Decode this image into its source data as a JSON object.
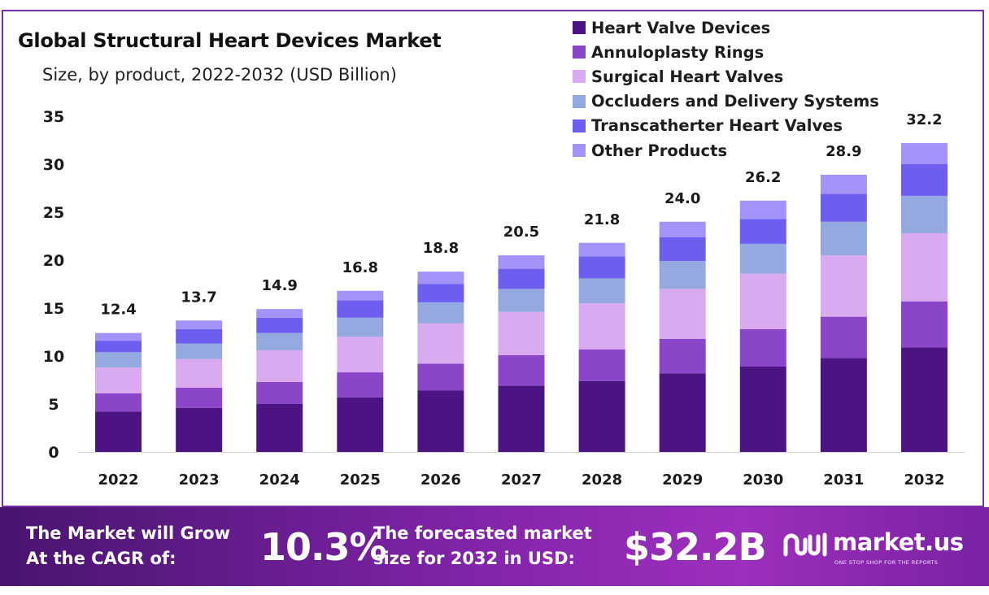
{
  "chart_data": {
    "type": "bar",
    "stacked": true,
    "title": "Global Structural Heart Devices Market",
    "subtitle": "Size, by product, 2022-2032 (USD Billion)",
    "categories": [
      "2022",
      "2023",
      "2024",
      "2025",
      "2026",
      "2027",
      "2028",
      "2029",
      "2030",
      "2031",
      "2032"
    ],
    "totals": [
      12.4,
      13.7,
      14.9,
      16.8,
      18.8,
      20.5,
      21.8,
      24.0,
      26.2,
      28.9,
      32.2
    ],
    "total_labels": [
      "12.4",
      "13.7",
      "14.9",
      "16.8",
      "18.8",
      "20.5",
      "21.8",
      "24.0",
      "26.2",
      "28.9",
      "32.2"
    ],
    "series": [
      {
        "name": "Heart Valve Devices",
        "color": "#4b1482",
        "values": [
          4.2,
          4.6,
          5.0,
          5.7,
          6.4,
          6.9,
          7.4,
          8.2,
          8.9,
          9.8,
          10.9
        ]
      },
      {
        "name": "Annuloplasty Rings",
        "color": "#8a45c8",
        "values": [
          1.9,
          2.1,
          2.3,
          2.6,
          2.8,
          3.2,
          3.3,
          3.6,
          3.9,
          4.3,
          4.8
        ]
      },
      {
        "name": "Surgical Heart Valves",
        "color": "#d9aaf0",
        "values": [
          2.7,
          3.0,
          3.3,
          3.7,
          4.2,
          4.5,
          4.8,
          5.2,
          5.8,
          6.4,
          7.1
        ]
      },
      {
        "name": "Occluders and Delivery Systems",
        "color": "#93a9e0",
        "values": [
          1.6,
          1.6,
          1.8,
          2.0,
          2.2,
          2.4,
          2.6,
          2.9,
          3.1,
          3.5,
          3.9
        ]
      },
      {
        "name": "Transcatherter Heart Valves",
        "color": "#6e5ef0",
        "values": [
          1.2,
          1.5,
          1.6,
          1.8,
          1.9,
          2.1,
          2.3,
          2.5,
          2.6,
          2.9,
          3.3
        ]
      },
      {
        "name": "Other Products",
        "color": "#a392f7",
        "values": [
          0.8,
          0.9,
          0.9,
          1.0,
          1.3,
          1.4,
          1.4,
          1.6,
          1.9,
          2.0,
          2.2
        ]
      }
    ],
    "y_ticks": [
      "0",
      "5",
      "10",
      "15",
      "20",
      "25",
      "30",
      "35"
    ],
    "ylim": [
      0,
      35
    ],
    "grid": false,
    "legend_position": "top-right"
  },
  "banner": {
    "cagr_label_line1": "The Market will Grow",
    "cagr_label_line2": "At the CAGR of:",
    "cagr_value": "10.3%",
    "forecast_label_line1": "The forecasted market",
    "forecast_label_line2": "size for 2032 in USD:",
    "forecast_value": "$32.2B",
    "brand_name": "market.us",
    "brand_tagline": "ONE STOP SHOP FOR THE REPORTS"
  },
  "colors": {
    "frame_border": "#7b2fa6",
    "banner_start": "#4a1470",
    "banner_end": "#9c2fbd"
  }
}
